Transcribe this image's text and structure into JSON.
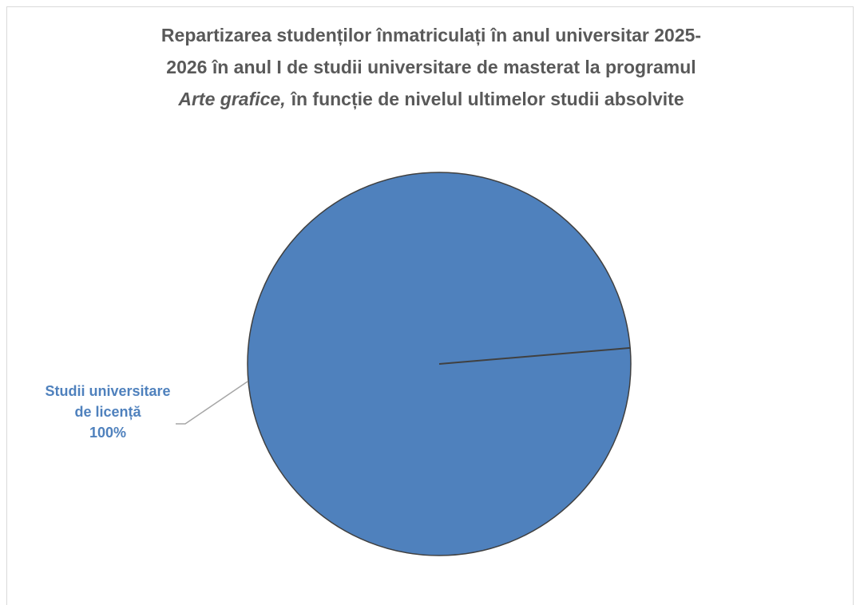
{
  "chart_data": {
    "type": "pie",
    "title": [
      "Repartizarea studenților înmatriculați în anul universitar 2025-",
      "2026 în anul I de studii universitare de masterat la programul",
      "Arte grafice,",
      "în funcție de nivelul ultimelor studii absolvite"
    ],
    "categories": [
      "Studii universitare de licență"
    ],
    "values": [
      100
    ],
    "value_labels": [
      "100%"
    ],
    "colors": [
      "#4f81bd"
    ]
  }
}
